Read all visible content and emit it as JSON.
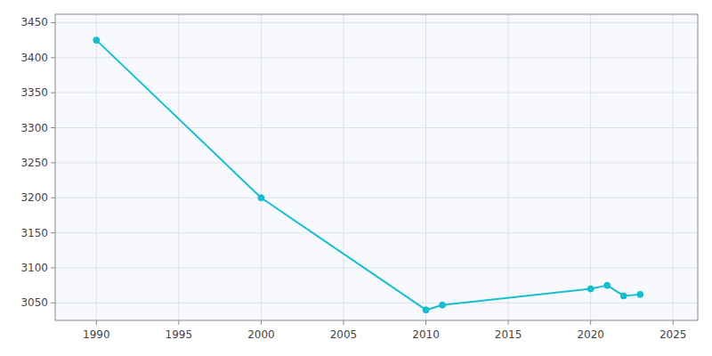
{
  "chart_data": {
    "type": "line",
    "x": [
      1990,
      2000,
      2010,
      2011,
      2020,
      2021,
      2022,
      2023
    ],
    "values": [
      3425,
      3200,
      3040,
      3047,
      3070,
      3075,
      3060,
      3062
    ],
    "color": "#17becf",
    "marker": "circle",
    "xlim": [
      1987.5,
      2026.5
    ],
    "ylim": [
      3025,
      3462
    ],
    "xticks": [
      1990,
      1995,
      2000,
      2005,
      2010,
      2015,
      2020,
      2025
    ],
    "yticks": [
      3050,
      3100,
      3150,
      3200,
      3250,
      3300,
      3350,
      3400,
      3450
    ],
    "grid": true
  }
}
